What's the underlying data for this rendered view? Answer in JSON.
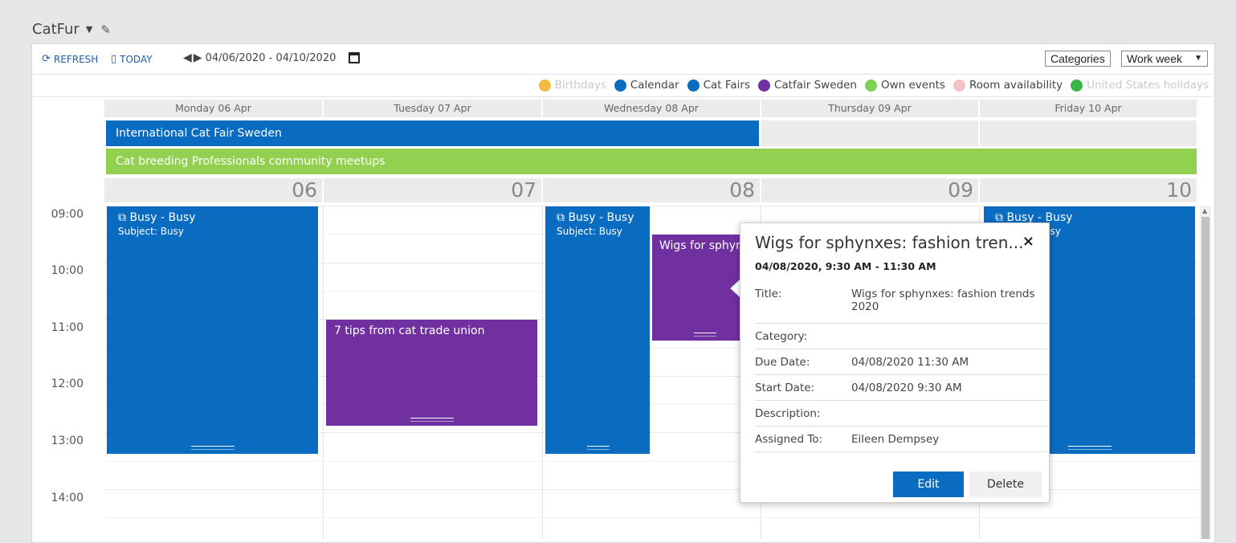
{
  "header": {
    "title": "CatFur"
  },
  "toolbar": {
    "refresh_label": "REFRESH",
    "today_label": "TODAY",
    "date_range": "04/06/2020 - 04/10/2020",
    "categories_label": "Categories",
    "view_label": "Work week"
  },
  "legend": [
    {
      "label": "Birthdays",
      "color": "#f5b942",
      "dim": true
    },
    {
      "label": "Calendar",
      "color": "#0a6cc0",
      "dim": false
    },
    {
      "label": "Cat Fairs",
      "color": "#0a6cc0",
      "dim": false
    },
    {
      "label": "Catfair Sweden",
      "color": "#7030a0",
      "dim": false
    },
    {
      "label": "Own events",
      "color": "#7dd34f",
      "dim": false
    },
    {
      "label": "Room availability",
      "color": "#f6c0c8",
      "dim": false
    },
    {
      "label": "United States holidays",
      "color": "#39b54a",
      "dim": true
    }
  ],
  "days": [
    {
      "header": "Monday 06 Apr",
      "num": "06"
    },
    {
      "header": "Tuesday 07 Apr",
      "num": "07"
    },
    {
      "header": "Wednesday 08 Apr",
      "num": "08"
    },
    {
      "header": "Thursday 09 Apr",
      "num": "09"
    },
    {
      "header": "Friday 10 Apr",
      "num": "10"
    }
  ],
  "allday": {
    "bar1": "International Cat Fair Sweden",
    "bar2": "Cat breeding Professionals community meetups"
  },
  "times": [
    "09:00",
    "10:00",
    "11:00",
    "12:00",
    "13:00",
    "14:00"
  ],
  "events": {
    "mon_busy_title": "Busy - Busy",
    "mon_busy_sub": "Subject: Busy",
    "tue_tips_title": "7 tips from cat trade union",
    "wed_busy_title": "Busy - Busy",
    "wed_busy_sub": "Subject: Busy",
    "wed_wigs_title": "Wigs for sphynxes: fashion trends 2020",
    "fri_busy_title": "Busy - Busy",
    "fri_busy_sub": "Subject: Busy"
  },
  "popup": {
    "title": "Wigs for sphynxes: fashion tren...",
    "close": "×",
    "datetime": "04/08/2020, 9:30 AM - 11:30 AM",
    "fields": [
      {
        "key": "Title:",
        "value": "Wigs for sphynxes: fashion trends 2020"
      },
      {
        "key": "Category:",
        "value": ""
      },
      {
        "key": "Due Date:",
        "value": "04/08/2020 11:30 AM"
      },
      {
        "key": "Start Date:",
        "value": "04/08/2020 9:30 AM"
      },
      {
        "key": "Description:",
        "value": ""
      },
      {
        "key": "Assigned To:",
        "value": "Eileen Dempsey"
      }
    ],
    "edit_label": "Edit",
    "delete_label": "Delete"
  }
}
